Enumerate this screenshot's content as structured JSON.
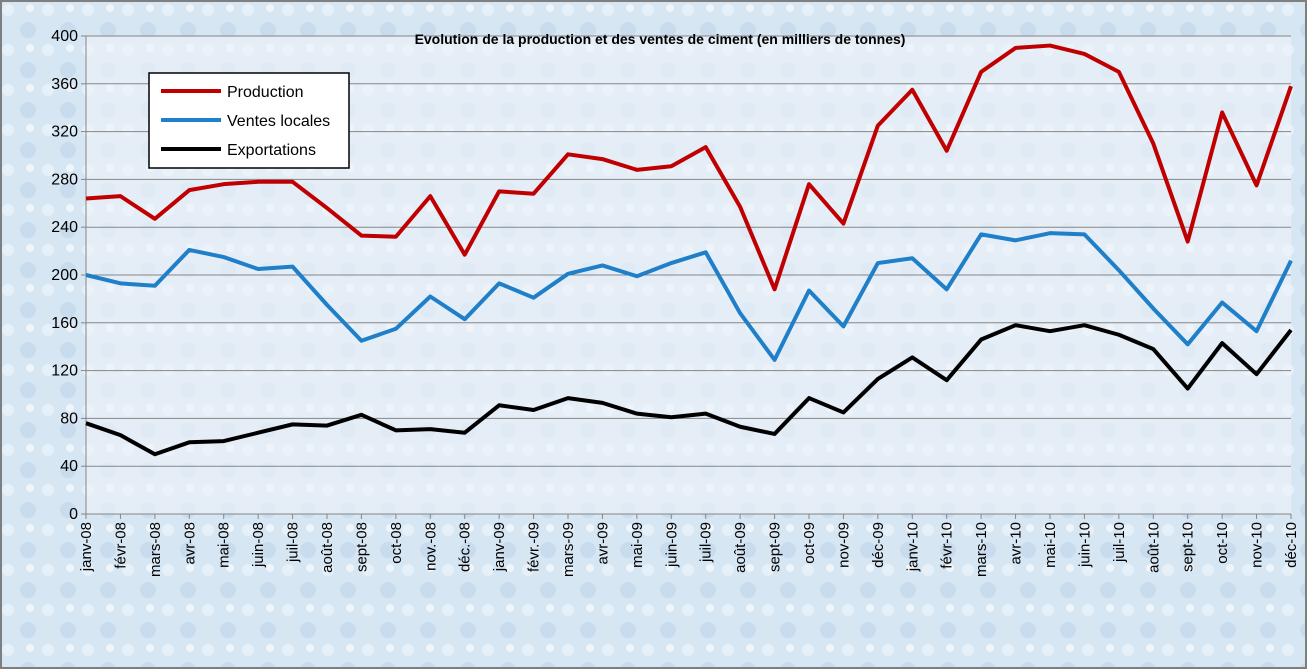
{
  "chart_data": {
    "type": "line",
    "title": "Evolution de la production et des ventes de ciment (en milliers de tonnes)",
    "categories": [
      "janv-08",
      "févr-08",
      "mars-08",
      "avr-08",
      "mai-08",
      "juin-08",
      "juil-08",
      "août-08",
      "sept-08",
      "oct-08",
      "nov.-08",
      "déc.-08",
      "janv-09",
      "févr.-09",
      "mars-09",
      "avr-09",
      "mai-09",
      "juin-09",
      "juil-09",
      "août-09",
      "sept-09",
      "oct-09",
      "nov-09",
      "déc-09",
      "janv-10",
      "févr-10",
      "mars-10",
      "avr-10",
      "mai-10",
      "juin-10",
      "juil-10",
      "août-10",
      "sept-10",
      "oct-10",
      "nov-10",
      "déc-10"
    ],
    "series": [
      {
        "name": "Production",
        "color": "#c00000",
        "values": [
          264,
          266,
          247,
          271,
          276,
          278,
          278,
          256,
          233,
          232,
          266,
          217,
          270,
          268,
          301,
          297,
          288,
          291,
          307,
          257,
          188,
          276,
          243,
          325,
          355,
          304,
          370,
          390,
          392,
          385,
          370,
          310,
          228,
          336,
          275,
          358
        ]
      },
      {
        "name": "Ventes locales",
        "color": "#1f7fc8",
        "values": [
          200,
          193,
          191,
          221,
          215,
          205,
          207,
          175,
          145,
          155,
          182,
          163,
          193,
          181,
          201,
          208,
          199,
          210,
          219,
          168,
          129,
          187,
          157,
          210,
          214,
          188,
          234,
          229,
          235,
          234,
          204,
          172,
          142,
          177,
          153,
          212
        ]
      },
      {
        "name": "Exportations",
        "color": "#000000",
        "values": [
          76,
          66,
          50,
          60,
          61,
          68,
          75,
          74,
          83,
          70,
          71,
          68,
          91,
          87,
          97,
          93,
          84,
          81,
          84,
          73,
          67,
          97,
          85,
          113,
          131,
          112,
          146,
          158,
          153,
          158,
          150,
          138,
          105,
          143,
          117,
          154
        ]
      }
    ],
    "ylim": [
      0,
      400
    ],
    "yticks": [
      0,
      40,
      80,
      120,
      160,
      200,
      240,
      280,
      320,
      360,
      400
    ],
    "grid": true,
    "legend": "top-left"
  }
}
